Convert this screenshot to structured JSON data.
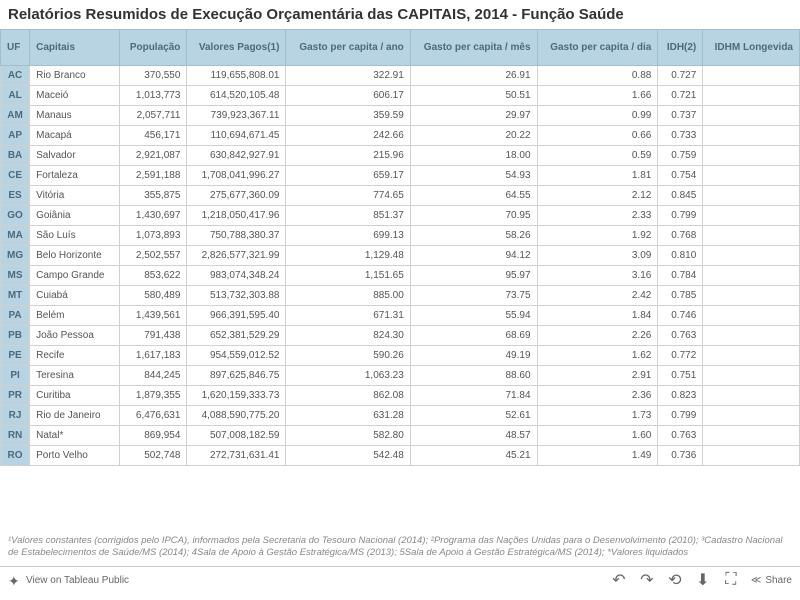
{
  "title": "Relatórios Resumidos de Execução Orçamentária das CAPITAIS, 2014 - Função Saúde",
  "columns": [
    "UF",
    "Capitais",
    "População",
    "Valores Pagos(1)",
    "Gasto per capita / ano",
    "Gasto per capita / mês",
    "Gasto per capita / dia",
    "IDH(2)",
    "IDHM Longevida"
  ],
  "rows": [
    {
      "uf": "AC",
      "capital": "Rio Branco",
      "pop": "370,550",
      "valores": "119,655,808.01",
      "ano": "322.91",
      "mes": "26.91",
      "dia": "0.88",
      "idh": "0.727",
      "idhm": ""
    },
    {
      "uf": "AL",
      "capital": "Maceió",
      "pop": "1,013,773",
      "valores": "614,520,105.48",
      "ano": "606.17",
      "mes": "50.51",
      "dia": "1.66",
      "idh": "0.721",
      "idhm": ""
    },
    {
      "uf": "AM",
      "capital": "Manaus",
      "pop": "2,057,711",
      "valores": "739,923,367.11",
      "ano": "359.59",
      "mes": "29.97",
      "dia": "0.99",
      "idh": "0.737",
      "idhm": ""
    },
    {
      "uf": "AP",
      "capital": "Macapá",
      "pop": "456,171",
      "valores": "110,694,671.45",
      "ano": "242.66",
      "mes": "20.22",
      "dia": "0.66",
      "idh": "0.733",
      "idhm": ""
    },
    {
      "uf": "BA",
      "capital": "Salvador",
      "pop": "2,921,087",
      "valores": "630,842,927.91",
      "ano": "215.96",
      "mes": "18.00",
      "dia": "0.59",
      "idh": "0.759",
      "idhm": ""
    },
    {
      "uf": "CE",
      "capital": "Fortaleza",
      "pop": "2,591,188",
      "valores": "1,708,041,996.27",
      "ano": "659.17",
      "mes": "54.93",
      "dia": "1.81",
      "idh": "0.754",
      "idhm": ""
    },
    {
      "uf": "ES",
      "capital": "Vitória",
      "pop": "355,875",
      "valores": "275,677,360.09",
      "ano": "774.65",
      "mes": "64.55",
      "dia": "2.12",
      "idh": "0.845",
      "idhm": ""
    },
    {
      "uf": "GO",
      "capital": "Goiânia",
      "pop": "1,430,697",
      "valores": "1,218,050,417.96",
      "ano": "851.37",
      "mes": "70.95",
      "dia": "2.33",
      "idh": "0.799",
      "idhm": ""
    },
    {
      "uf": "MA",
      "capital": "São Luís",
      "pop": "1,073,893",
      "valores": "750,788,380.37",
      "ano": "699.13",
      "mes": "58.26",
      "dia": "1.92",
      "idh": "0.768",
      "idhm": ""
    },
    {
      "uf": "MG",
      "capital": "Belo Horizonte",
      "pop": "2,502,557",
      "valores": "2,826,577,321.99",
      "ano": "1,129.48",
      "mes": "94.12",
      "dia": "3.09",
      "idh": "0.810",
      "idhm": ""
    },
    {
      "uf": "MS",
      "capital": "Campo Grande",
      "pop": "853,622",
      "valores": "983,074,348.24",
      "ano": "1,151.65",
      "mes": "95.97",
      "dia": "3.16",
      "idh": "0.784",
      "idhm": ""
    },
    {
      "uf": "MT",
      "capital": "Cuiabá",
      "pop": "580,489",
      "valores": "513,732,303.88",
      "ano": "885.00",
      "mes": "73.75",
      "dia": "2.42",
      "idh": "0.785",
      "idhm": ""
    },
    {
      "uf": "PA",
      "capital": "Belém",
      "pop": "1,439,561",
      "valores": "966,391,595.40",
      "ano": "671.31",
      "mes": "55.94",
      "dia": "1.84",
      "idh": "0.746",
      "idhm": ""
    },
    {
      "uf": "PB",
      "capital": "João Pessoa",
      "pop": "791,438",
      "valores": "652,381,529.29",
      "ano": "824.30",
      "mes": "68.69",
      "dia": "2.26",
      "idh": "0.763",
      "idhm": ""
    },
    {
      "uf": "PE",
      "capital": "Recife",
      "pop": "1,617,183",
      "valores": "954,559,012.52",
      "ano": "590.26",
      "mes": "49.19",
      "dia": "1.62",
      "idh": "0.772",
      "idhm": ""
    },
    {
      "uf": "PI",
      "capital": "Teresina",
      "pop": "844,245",
      "valores": "897,625,846.75",
      "ano": "1,063.23",
      "mes": "88.60",
      "dia": "2.91",
      "idh": "0.751",
      "idhm": ""
    },
    {
      "uf": "PR",
      "capital": "Curitiba",
      "pop": "1,879,355",
      "valores": "1,620,159,333.73",
      "ano": "862.08",
      "mes": "71.84",
      "dia": "2.36",
      "idh": "0.823",
      "idhm": ""
    },
    {
      "uf": "RJ",
      "capital": "Rio de Janeiro",
      "pop": "6,476,631",
      "valores": "4,088,590,775.20",
      "ano": "631.28",
      "mes": "52.61",
      "dia": "1.73",
      "idh": "0.799",
      "idhm": ""
    },
    {
      "uf": "RN",
      "capital": "Natal*",
      "pop": "869,954",
      "valores": "507,008,182.59",
      "ano": "582.80",
      "mes": "48.57",
      "dia": "1.60",
      "idh": "0.763",
      "idhm": ""
    },
    {
      "uf": "RO",
      "capital": "Porto Velho",
      "pop": "502,748",
      "valores": "272,731,631.41",
      "ano": "542.48",
      "mes": "45.21",
      "dia": "1.49",
      "idh": "0.736",
      "idhm": ""
    }
  ],
  "footnotes": "¹Valores constantes (corrigidos pelo IPCA), informados pela Secretaria do Tesouro Nacional (2014); ²Programa das Nações Unidas para o Desenvolvimento (2010); ³Cadastro Nacional de Estabelecimentos de Saúde/MS (2014); 4Sala de Apoio à Gestão Estratégica/MS (2013); 5Sala de Apoio à Gestão Estratégica/MS (2014); *Valores liquidados",
  "toolbar": {
    "view_label": "View on Tableau Public",
    "share_label": "Share"
  }
}
